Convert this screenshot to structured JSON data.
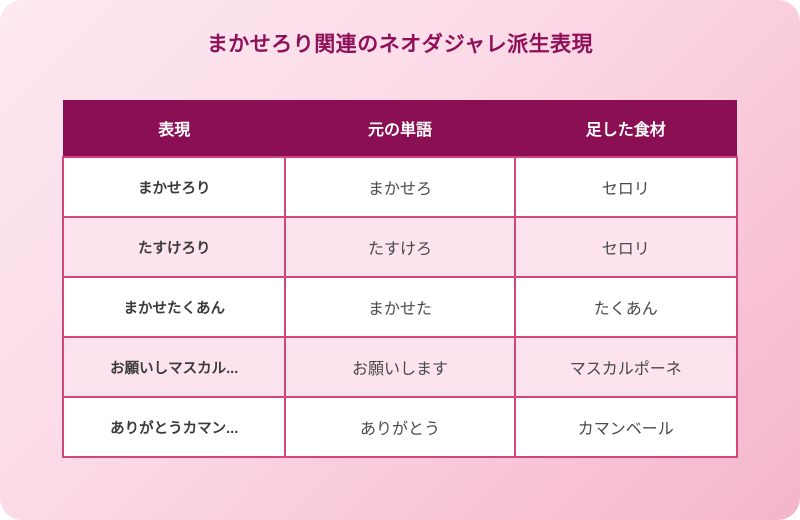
{
  "page": {
    "title": "まかせろり関連のネオダジャレ派生表現"
  },
  "table": {
    "columns": [
      "表現",
      "元の単語",
      "足した食材"
    ],
    "rows": [
      {
        "expression": "まかせろり",
        "original_word": "まかせろ",
        "added_ingredient": "セロリ"
      },
      {
        "expression": "たすけろり",
        "original_word": "たすけろ",
        "added_ingredient": "セロリ"
      },
      {
        "expression": "まかせたくあん",
        "original_word": "まかせた",
        "added_ingredient": "たくあん"
      },
      {
        "expression": "お願いしマスカル...",
        "original_word": "お願いします",
        "added_ingredient": "マスカルポーネ"
      },
      {
        "expression": "ありがとうカマン...",
        "original_word": "ありがとう",
        "added_ingredient": "カマンベール"
      }
    ]
  },
  "colors": {
    "header_bg": "#8b0f53",
    "title_text": "#8e1059",
    "table_border": "#d4457c",
    "row_bg": "#ffffff",
    "alt_row_bg": "#fce3ee",
    "body_text": "#4a4a4a",
    "expression_text": "#3a3a3a",
    "card_gradient_start": "#fde8f0",
    "card_gradient_end": "#f5b5cb"
  }
}
